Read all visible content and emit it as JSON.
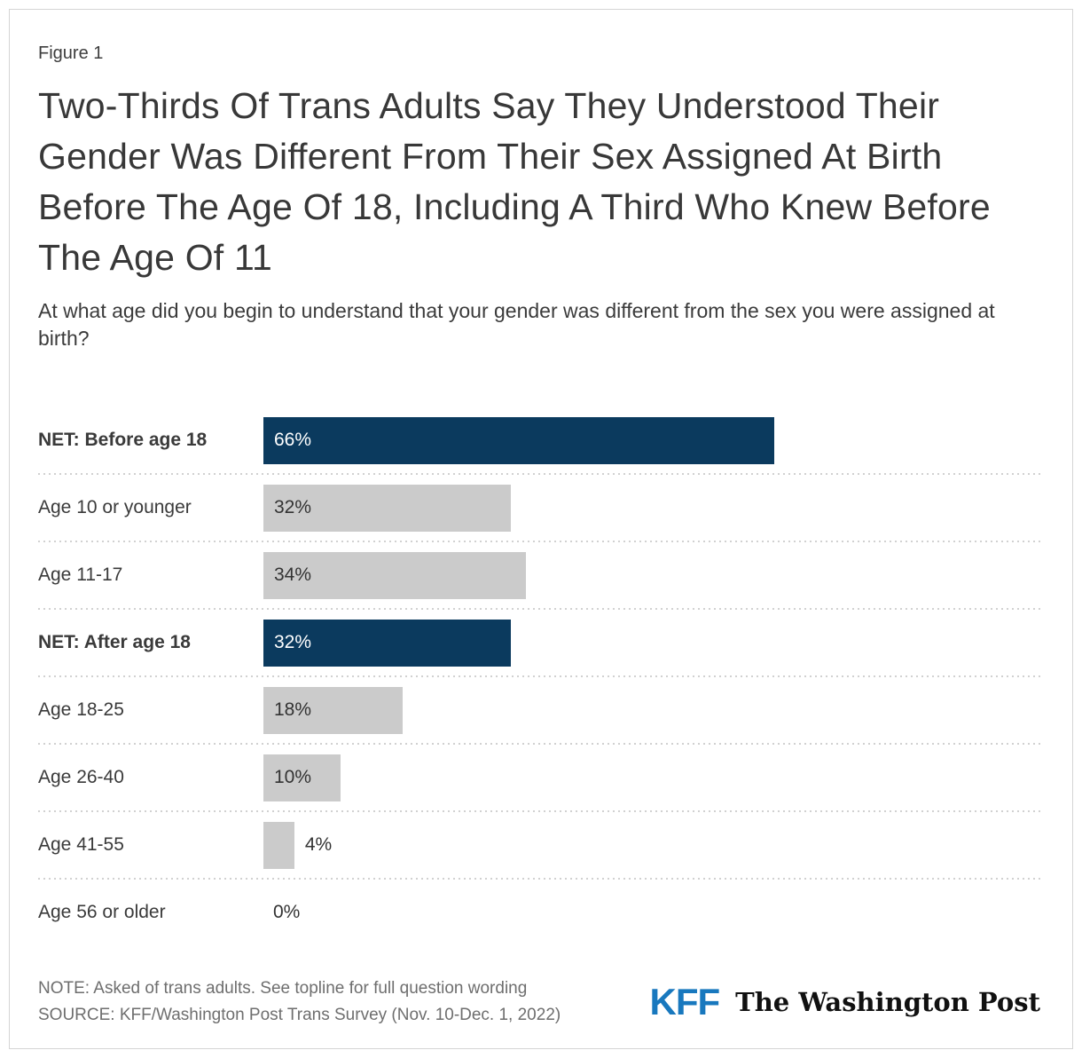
{
  "figure_label": "Figure 1",
  "title": "Two-Thirds Of Trans Adults Say They Understood Their Gender Was Different From Their Sex Assigned At Birth Before The Age Of 18, Including A Third Who Knew Before The Age Of 11",
  "subtitle": "At what age did you begin to understand that your gender was different from the sex you were assigned at birth?",
  "chart_data": {
    "type": "bar",
    "orientation": "horizontal",
    "unit": "%",
    "categories": [
      "NET: Before age 18",
      "Age 10 or younger",
      "Age 11-17",
      "NET: After age 18",
      "Age 18-25",
      "Age 26-40",
      "Age 41-55",
      "Age 56 or older"
    ],
    "values": [
      66,
      32,
      34,
      32,
      18,
      10,
      4,
      0
    ],
    "xlim": [
      0,
      100
    ],
    "grid": "dotted row separators",
    "colors": {
      "navy": "#0b3a5e",
      "gray": "#cbcbcb"
    },
    "rows": [
      {
        "label": "NET: Before age 18",
        "value": 66,
        "display": "66%",
        "style": "navy",
        "bold": true,
        "value_position": "inside"
      },
      {
        "label": "Age 10 or younger",
        "value": 32,
        "display": "32%",
        "style": "gray",
        "bold": false,
        "value_position": "inside"
      },
      {
        "label": "Age 11-17",
        "value": 34,
        "display": "34%",
        "style": "gray",
        "bold": false,
        "value_position": "inside"
      },
      {
        "label": "NET: After age 18",
        "value": 32,
        "display": "32%",
        "style": "navy",
        "bold": true,
        "value_position": "inside"
      },
      {
        "label": "Age 18-25",
        "value": 18,
        "display": "18%",
        "style": "gray",
        "bold": false,
        "value_position": "inside"
      },
      {
        "label": "Age 26-40",
        "value": 10,
        "display": "10%",
        "style": "gray",
        "bold": false,
        "value_position": "inside"
      },
      {
        "label": "Age 41-55",
        "value": 4,
        "display": "4%",
        "style": "gray",
        "bold": false,
        "value_position": "outside"
      },
      {
        "label": "Age 56 or older",
        "value": 0,
        "display": "0%",
        "style": "none",
        "bold": false,
        "value_position": "zero"
      }
    ]
  },
  "footer": {
    "note": "NOTE: Asked of trans adults. See topline for full question wording",
    "source": "SOURCE: KFF/Washington Post Trans Survey (Nov. 10-Dec. 1, 2022)",
    "kff_logo_text": "KFF",
    "wapo_logo_text": "The Washington Post",
    "kff_blue": "#1878be"
  }
}
